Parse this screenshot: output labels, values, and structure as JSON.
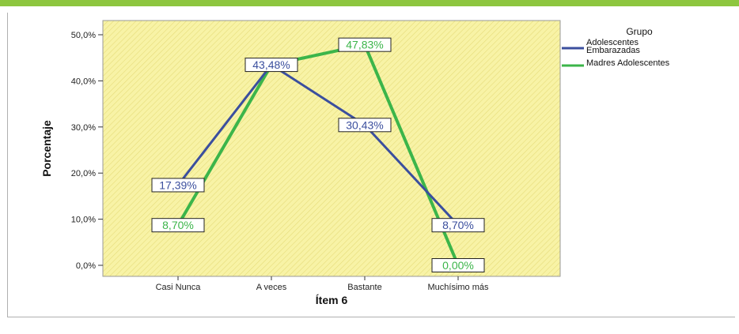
{
  "chart_data": {
    "type": "line",
    "title": "",
    "xlabel": "Ítem 6",
    "ylabel": "Porcentaje",
    "categories": [
      "Casi Nunca",
      "A veces",
      "Bastante",
      "Muchísimo más"
    ],
    "ylim": [
      0,
      50
    ],
    "yticks": [
      "0,0%",
      "10,0%",
      "20,0%",
      "30,0%",
      "40,0%",
      "50,0%"
    ],
    "ytick_values": [
      0,
      10,
      20,
      30,
      40,
      50
    ],
    "legend_title": "Grupo",
    "legend_placement": "top-right outside",
    "background_color": "#f7f2a3",
    "series": [
      {
        "name": "Adolescentes Embarazadas",
        "name_lines": [
          "Adolescentes",
          "Embarazadas"
        ],
        "color": "#3b4f9e",
        "values": [
          17.39,
          43.48,
          30.43,
          8.7
        ],
        "labels": [
          "17,39%",
          "43,48%",
          "30,43%",
          "8,70%"
        ]
      },
      {
        "name": "Madres Adolescentes",
        "name_lines": [
          "Madres Adolescentes"
        ],
        "color": "#3cb54a",
        "values": [
          8.7,
          43.48,
          47.83,
          0.0
        ],
        "labels": [
          "8,70%",
          "43,48%",
          "47,83%",
          "0,00%"
        ]
      }
    ]
  }
}
